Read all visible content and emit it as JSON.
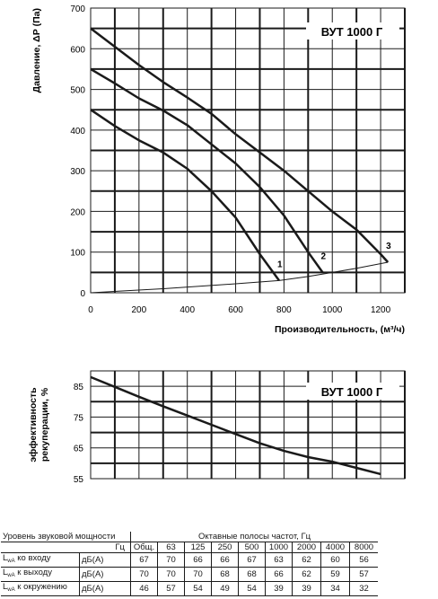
{
  "chart_data": [
    {
      "type": "line",
      "title": "ВУТ 1000 Г",
      "xlabel": "Производительность, (м³/ч)",
      "ylabel": "Давление, ΔР (Па)",
      "xlim": [
        0,
        1300
      ],
      "ylim": [
        0,
        700
      ],
      "xticks": [
        0,
        200,
        400,
        600,
        800,
        1000,
        1200
      ],
      "yticks": [
        0,
        100,
        200,
        300,
        400,
        500,
        600,
        700
      ],
      "grid": true,
      "series": [
        {
          "name": "1",
          "x": [
            0,
            100,
            200,
            300,
            400,
            500,
            600,
            700,
            780
          ],
          "y": [
            450,
            410,
            375,
            345,
            305,
            250,
            185,
            95,
            30
          ]
        },
        {
          "name": "2",
          "x": [
            0,
            100,
            200,
            300,
            400,
            500,
            600,
            700,
            800,
            900,
            960
          ],
          "y": [
            550,
            515,
            478,
            448,
            412,
            365,
            318,
            260,
            190,
            100,
            50
          ]
        },
        {
          "name": "3",
          "x": [
            0,
            100,
            200,
            300,
            400,
            500,
            600,
            700,
            800,
            900,
            1000,
            1100,
            1200,
            1230
          ],
          "y": [
            650,
            605,
            560,
            518,
            480,
            440,
            390,
            345,
            300,
            250,
            200,
            155,
            95,
            75
          ]
        },
        {
          "name": "",
          "x": [
            0,
            300,
            600,
            780,
            900,
            1000,
            1100,
            1230
          ],
          "y": [
            0,
            10,
            22,
            30,
            40,
            50,
            60,
            75
          ]
        }
      ]
    },
    {
      "type": "line",
      "title": "ВУТ 1000 Г",
      "xlabel": "",
      "ylabel": "эффективность рекуперации, %",
      "xlim": [
        0,
        1300
      ],
      "ylim": [
        55,
        90
      ],
      "yticks": [
        55,
        65,
        75,
        85
      ],
      "grid": true,
      "series": [
        {
          "name": "",
          "x": [
            0,
            100,
            200,
            300,
            400,
            500,
            600,
            700,
            800,
            900,
            1000,
            1100,
            1200
          ],
          "y": [
            88,
            84.8,
            81.6,
            78.5,
            75.5,
            72.5,
            69.5,
            66.5,
            64,
            62,
            60.5,
            58.5,
            56.5
          ]
        }
      ]
    }
  ],
  "sound_table": {
    "title": "Уровень звуковой мощности",
    "hz_label": "Гц",
    "band_label": "Октавные полосы частот, Гц",
    "columns": [
      "Общ.",
      "63",
      "125",
      "250",
      "500",
      "1000",
      "2000",
      "4000",
      "8000"
    ],
    "rows": [
      {
        "label": "L",
        "sub": "wA",
        "rest": " ко входу",
        "unit": "дБ(А)",
        "values": [
          "67",
          "70",
          "66",
          "66",
          "67",
          "63",
          "62",
          "60",
          "56"
        ]
      },
      {
        "label": "L",
        "sub": "wA",
        "rest": " к выходу",
        "unit": "дБ(А)",
        "values": [
          "70",
          "70",
          "70",
          "68",
          "68",
          "66",
          "62",
          "59",
          "57"
        ]
      },
      {
        "label": "L",
        "sub": "wA",
        "rest": " к окружению",
        "unit": "дБ(А)",
        "values": [
          "46",
          "57",
          "54",
          "49",
          "54",
          "39",
          "39",
          "34",
          "32"
        ]
      }
    ]
  }
}
